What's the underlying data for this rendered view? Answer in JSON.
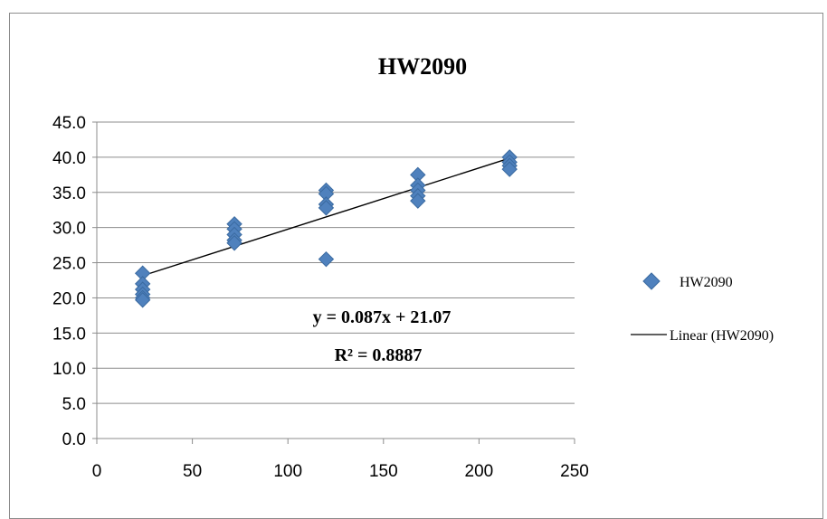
{
  "chart_data": {
    "type": "scatter",
    "title": "HW2090",
    "xlabel": "",
    "ylabel": "",
    "xlim": [
      0,
      250
    ],
    "ylim": [
      0,
      45
    ],
    "x_ticks": [
      "0",
      "50",
      "100",
      "150",
      "200",
      "250"
    ],
    "y_ticks": [
      "0.0",
      "5.0",
      "10.0",
      "15.0",
      "20.0",
      "25.0",
      "30.0",
      "35.0",
      "40.0",
      "45.0"
    ],
    "x_tick_values": [
      0,
      50,
      100,
      150,
      200,
      250
    ],
    "y_tick_values": [
      0,
      5,
      10,
      15,
      20,
      25,
      30,
      35,
      40,
      45
    ],
    "grid": "horizontal",
    "legend_position": "right",
    "series": [
      {
        "name": "HW2090",
        "marker": "diamond",
        "color": "#4f81bd",
        "points": [
          [
            24,
            23.5
          ],
          [
            24,
            22.0
          ],
          [
            24,
            21.2
          ],
          [
            24,
            20.5
          ],
          [
            24,
            20.0
          ],
          [
            24,
            19.7
          ],
          [
            72,
            30.5
          ],
          [
            72,
            29.8
          ],
          [
            72,
            29.0
          ],
          [
            72,
            28.2
          ],
          [
            72,
            27.8
          ],
          [
            120,
            35.3
          ],
          [
            120,
            34.8
          ],
          [
            120,
            33.3
          ],
          [
            120,
            32.8
          ],
          [
            120,
            25.5
          ],
          [
            168,
            37.5
          ],
          [
            168,
            36.0
          ],
          [
            168,
            35.3
          ],
          [
            168,
            34.5
          ],
          [
            168,
            33.8
          ],
          [
            216,
            40.0
          ],
          [
            216,
            39.3
          ],
          [
            216,
            38.8
          ],
          [
            216,
            38.3
          ]
        ]
      },
      {
        "name": "Linear (HW2090)",
        "type": "trendline",
        "color": "#000000",
        "slope": 0.087,
        "intercept": 21.07,
        "x_range": [
          24,
          216
        ]
      }
    ],
    "annotations": {
      "equation": "y = 0.087x + 21.07",
      "r_squared": "R² = 0.8887"
    },
    "legend": [
      "HW2090",
      "Linear (HW2090)"
    ]
  }
}
